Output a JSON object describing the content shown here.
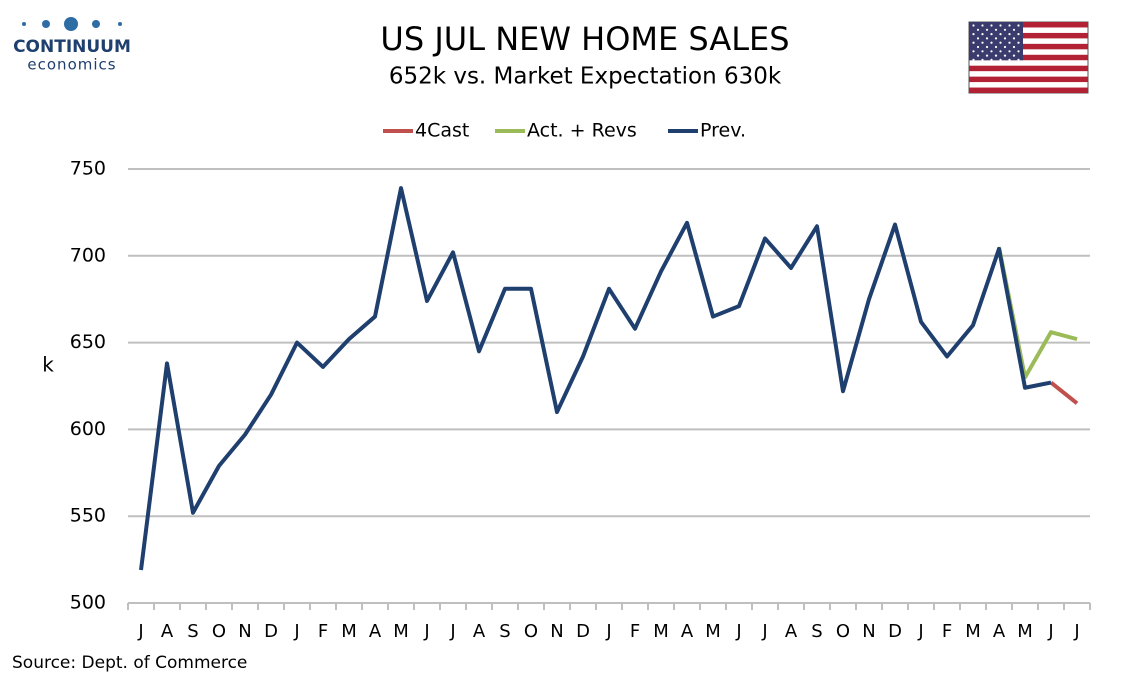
{
  "branding": {
    "name": "CONTINUUM",
    "tagline": "economics"
  },
  "chart_data": {
    "type": "line",
    "title": "US JUL NEW HOME SALES",
    "subtitle": "652k vs. Market Expectation 630k",
    "y_label": "k",
    "source": "Source: Dept. of Commerce",
    "categories": [
      "J",
      "A",
      "S",
      "O",
      "N",
      "D",
      "J",
      "F",
      "M",
      "A",
      "M",
      "J",
      "J",
      "A",
      "S",
      "O",
      "N",
      "D",
      "J",
      "F",
      "M",
      "A",
      "M",
      "J",
      "J",
      "A",
      "S",
      "O",
      "N",
      "D",
      "J",
      "F",
      "M",
      "A",
      "M",
      "J",
      "J"
    ],
    "series": [
      {
        "name": "4Cast",
        "color": "#c0504d",
        "values": [
          null,
          null,
          null,
          null,
          null,
          null,
          null,
          null,
          null,
          null,
          null,
          null,
          null,
          null,
          null,
          null,
          null,
          null,
          null,
          null,
          null,
          null,
          null,
          null,
          null,
          null,
          null,
          null,
          null,
          null,
          null,
          null,
          null,
          null,
          null,
          627,
          615
        ]
      },
      {
        "name": "Act. + Revs",
        "color": "#9bbb59",
        "values": [
          null,
          null,
          null,
          null,
          null,
          null,
          null,
          null,
          null,
          null,
          null,
          null,
          null,
          null,
          null,
          null,
          null,
          null,
          null,
          null,
          null,
          null,
          null,
          null,
          null,
          null,
          null,
          null,
          null,
          null,
          null,
          null,
          null,
          705,
          630,
          656,
          652
        ]
      },
      {
        "name": "Prev.",
        "color": "#1f3f6e",
        "values": [
          519,
          638,
          552,
          579,
          597,
          620,
          650,
          636,
          652,
          665,
          739,
          674,
          702,
          645,
          681,
          681,
          610,
          642,
          681,
          658,
          691,
          719,
          665,
          671,
          710,
          693,
          717,
          622,
          675,
          718,
          662,
          642,
          660,
          704,
          624,
          627,
          null
        ]
      }
    ],
    "ylim": [
      500,
      750
    ],
    "yticks": [
      500,
      550,
      600,
      650,
      700,
      750
    ],
    "grid": true,
    "legend": "top"
  }
}
